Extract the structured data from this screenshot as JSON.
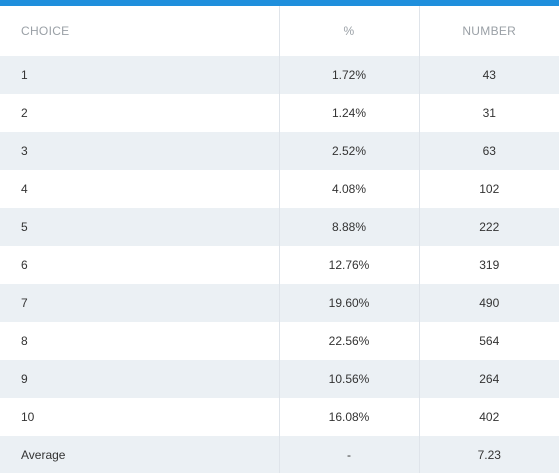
{
  "colors": {
    "accent_bar": "#1f8fdc",
    "row_shade": "#ebf0f4",
    "header_text": "#9aa0a6"
  },
  "table": {
    "headers": [
      "CHOICE",
      "%",
      "NUMBER"
    ],
    "rows": [
      {
        "choice": "1",
        "percent": "1.72%",
        "number": "43"
      },
      {
        "choice": "2",
        "percent": "1.24%",
        "number": "31"
      },
      {
        "choice": "3",
        "percent": "2.52%",
        "number": "63"
      },
      {
        "choice": "4",
        "percent": "4.08%",
        "number": "102"
      },
      {
        "choice": "5",
        "percent": "8.88%",
        "number": "222"
      },
      {
        "choice": "6",
        "percent": "12.76%",
        "number": "319"
      },
      {
        "choice": "7",
        "percent": "19.60%",
        "number": "490"
      },
      {
        "choice": "8",
        "percent": "22.56%",
        "number": "564"
      },
      {
        "choice": "9",
        "percent": "10.56%",
        "number": "264"
      },
      {
        "choice": "10",
        "percent": "16.08%",
        "number": "402"
      },
      {
        "choice": "Average",
        "percent": "-",
        "number": "7.23"
      }
    ]
  }
}
